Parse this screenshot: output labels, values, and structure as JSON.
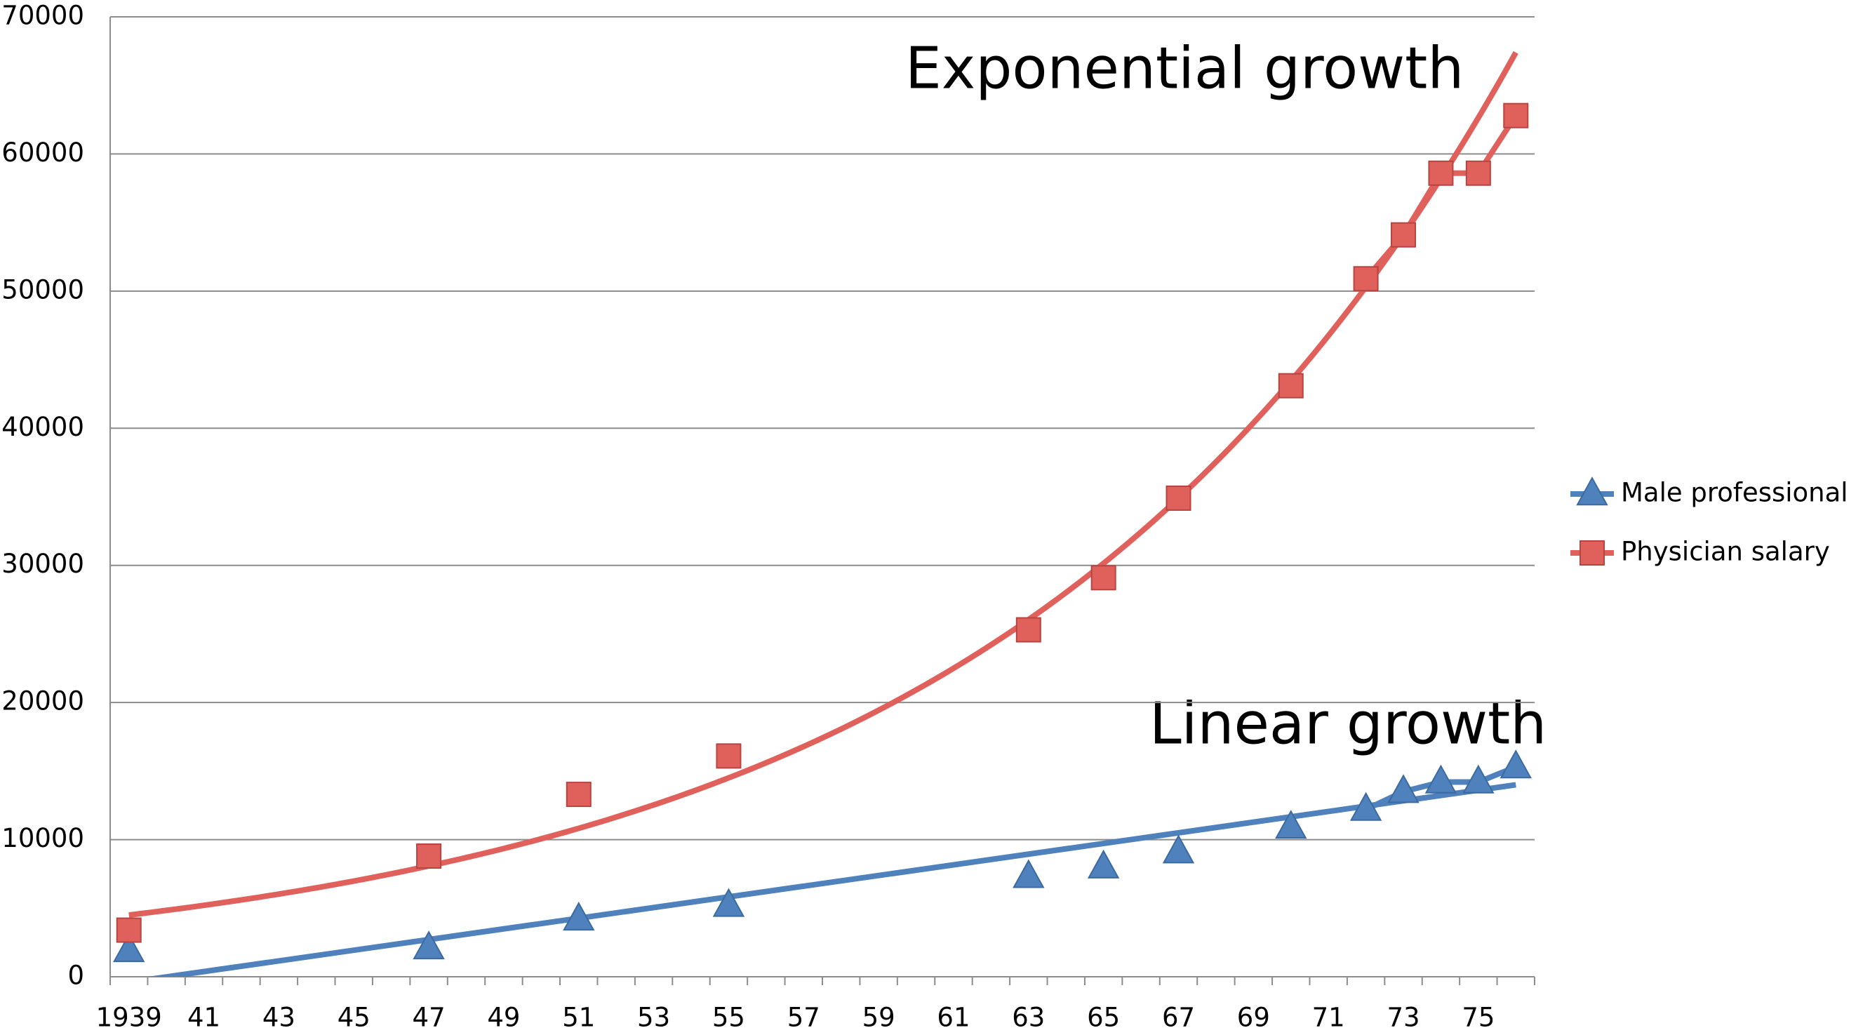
{
  "chart_data": {
    "type": "line",
    "categories": [
      "1939",
      null,
      "41",
      null,
      "43",
      null,
      "45",
      null,
      "47",
      null,
      "49",
      null,
      "51",
      null,
      "53",
      null,
      "55",
      null,
      "57",
      null,
      "59",
      null,
      "61",
      null,
      "63",
      null,
      "65",
      null,
      "67",
      null,
      "69",
      null,
      "71",
      null,
      "73",
      null,
      "75",
      null
    ],
    "series": [
      {
        "name": "Male professional",
        "color": "#4f81bd",
        "marker": "triangle",
        "values": [
          1900,
          null,
          null,
          null,
          null,
          null,
          null,
          null,
          2100,
          null,
          null,
          null,
          4200,
          null,
          null,
          null,
          5200,
          null,
          null,
          null,
          null,
          null,
          null,
          null,
          7300,
          null,
          8000,
          null,
          9100,
          null,
          null,
          10900,
          null,
          12200,
          13500,
          14200,
          14200,
          15300
        ],
        "trendline": {
          "type": "linear",
          "values": [
            -400,
            14000
          ]
        }
      },
      {
        "name": "Physician salary",
        "color": "#e0605c",
        "marker": "square",
        "values": [
          3400,
          null,
          null,
          null,
          null,
          null,
          null,
          null,
          8800,
          null,
          null,
          null,
          13300,
          null,
          null,
          null,
          16100,
          null,
          null,
          null,
          null,
          null,
          null,
          null,
          25300,
          null,
          29100,
          null,
          34900,
          null,
          null,
          43100,
          null,
          50900,
          54100,
          58600,
          58600,
          62800
        ],
        "trendline": {
          "type": "exponential",
          "values": [
            4500,
            67400
          ]
        }
      }
    ],
    "ylim": [
      0,
      70000
    ],
    "yticks": [
      0,
      10000,
      20000,
      30000,
      40000,
      50000,
      60000,
      70000
    ],
    "grid": true,
    "legend": "right",
    "annotations": [
      {
        "text": "Exponential growth",
        "color": "#c0281b"
      },
      {
        "text": "Linear growth",
        "color": "#1565c0"
      }
    ]
  }
}
